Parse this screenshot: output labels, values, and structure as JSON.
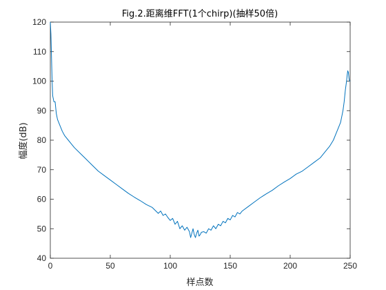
{
  "chart_data": {
    "type": "line",
    "title": "Fig.2.距离维FFT(1个chirp)(抽样50倍)",
    "xlabel": "样点数",
    "ylabel": "幅度(dB)",
    "xlim": [
      0,
      250
    ],
    "ylim": [
      40,
      120
    ],
    "xticks": [
      0,
      50,
      100,
      150,
      200,
      250
    ],
    "yticks": [
      40,
      50,
      60,
      70,
      80,
      90,
      100,
      110,
      120
    ],
    "xtick_labels": [
      "0",
      "50",
      "100",
      "150",
      "200",
      "250"
    ],
    "ytick_labels": [
      "40",
      "50",
      "60",
      "70",
      "80",
      "90",
      "100",
      "110",
      "120"
    ],
    "grid": false,
    "box": true,
    "line_color": "#0072BD",
    "series": [
      {
        "x": [
          0,
          0.5,
          1,
          1.5,
          2,
          3,
          4,
          5,
          6,
          8,
          10,
          12,
          15,
          18,
          20,
          25,
          30,
          35,
          40,
          45,
          50,
          55,
          60,
          65,
          70,
          75,
          80,
          85,
          88,
          90,
          92,
          94,
          96,
          98,
          100,
          102,
          104,
          106,
          108,
          110,
          112,
          114,
          116,
          117,
          118,
          119,
          120,
          121,
          122,
          123,
          124,
          125,
          126,
          128,
          130,
          132,
          134,
          136,
          138,
          140,
          142,
          144,
          146,
          148,
          150,
          152,
          154,
          156,
          158,
          160,
          165,
          170,
          175,
          180,
          185,
          190,
          195,
          200,
          205,
          210,
          215,
          220,
          225,
          230,
          233,
          236,
          238,
          240,
          242,
          243,
          244,
          245,
          246,
          247,
          247.5,
          248,
          248.5,
          249,
          249.5,
          250
        ],
        "y": [
          120,
          116,
          108,
          100,
          95,
          93,
          93,
          89,
          87,
          85,
          83,
          81.5,
          80,
          78.5,
          77.5,
          75.5,
          73.5,
          71.5,
          69.5,
          68,
          66.5,
          65,
          63.5,
          62,
          60.7,
          59.5,
          58.2,
          57.2,
          56,
          55.2,
          56,
          54.5,
          55,
          53.8,
          52.8,
          53.5,
          51.5,
          52.5,
          50,
          51,
          49.5,
          50.5,
          49,
          47,
          48.5,
          50,
          48,
          47,
          48.5,
          49.5,
          47.5,
          48,
          48.8,
          49,
          48.5,
          50,
          49.5,
          51,
          50,
          51.5,
          51,
          52.5,
          52,
          53.5,
          53,
          54.5,
          54,
          55.5,
          55,
          56,
          57.5,
          59,
          60.5,
          61.8,
          63,
          64.5,
          65.8,
          67,
          68.5,
          69.5,
          71,
          72.5,
          74,
          76.5,
          78,
          80,
          82,
          84,
          86,
          88,
          90,
          93,
          97,
          100,
          102,
          103.5,
          103,
          101,
          100,
          100
        ]
      }
    ]
  }
}
